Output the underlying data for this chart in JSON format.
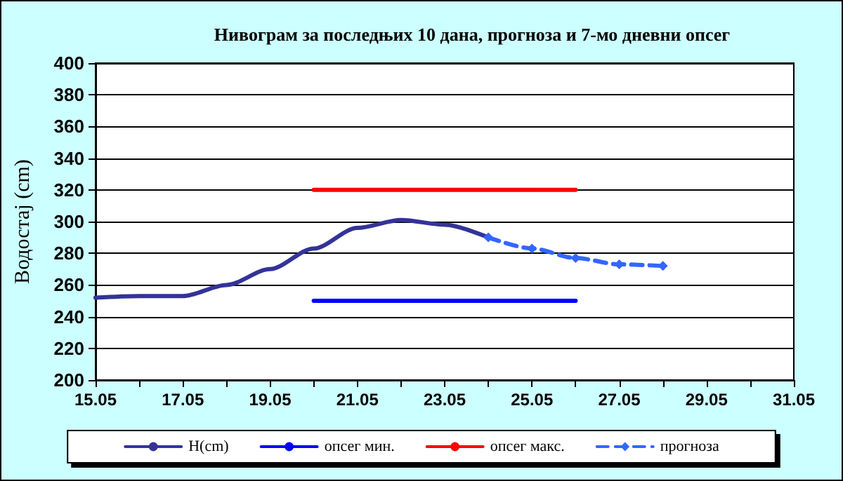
{
  "chart_data": {
    "type": "line",
    "title": "Нивограм за последњих 10 дана, прогноза и 7-мо дневни опсег",
    "ylabel": "Водостај (cm)",
    "xlim": [
      "--05-15",
      "--05-31"
    ],
    "xticks": [
      {
        "value": "--05-15",
        "label": "15.05"
      },
      {
        "value": "--05-16",
        "label": null
      },
      {
        "value": "--05-17",
        "label": "17.05"
      },
      {
        "value": "--05-18",
        "label": null
      },
      {
        "value": "--05-19",
        "label": "19.05"
      },
      {
        "value": "--05-20",
        "label": null
      },
      {
        "value": "--05-21",
        "label": "21.05"
      },
      {
        "value": "--05-22",
        "label": null
      },
      {
        "value": "--05-23",
        "label": "23.05"
      },
      {
        "value": "--05-24",
        "label": null
      },
      {
        "value": "--05-25",
        "label": "25.05"
      },
      {
        "value": "--05-26",
        "label": null
      },
      {
        "value": "--05-27",
        "label": "27.05"
      },
      {
        "value": "--05-28",
        "label": null
      },
      {
        "value": "--05-29",
        "label": "29.05"
      },
      {
        "value": "--05-30",
        "label": null
      },
      {
        "value": "--05-31",
        "label": "31.05"
      }
    ],
    "ylim": [
      200,
      400
    ],
    "yticks": [
      200,
      220,
      240,
      260,
      280,
      300,
      320,
      340,
      360,
      380,
      400
    ],
    "grid": "y",
    "legend": "bottom",
    "series": [
      {
        "name": "H(cm)",
        "color": "#333399",
        "marker": "none",
        "line_style": "solid",
        "x": [
          "--05-15",
          "--05-16",
          "--05-17",
          "--05-18",
          "--05-19",
          "--05-20",
          "--05-21",
          "--05-22",
          "--05-23",
          "--05-24"
        ],
        "values": [
          252,
          253,
          253,
          260,
          270,
          283,
          296,
          301,
          298,
          290
        ]
      },
      {
        "name": "опсег мин.",
        "color": "#0000ff",
        "marker": "none",
        "line_style": "solid",
        "x": [
          "--05-20",
          "--05-26"
        ],
        "values": [
          250,
          250
        ]
      },
      {
        "name": "опсег макс.",
        "color": "#ff0000",
        "marker": "none",
        "line_style": "solid",
        "x": [
          "--05-20",
          "--05-26"
        ],
        "values": [
          320,
          320
        ]
      },
      {
        "name": "прогноза",
        "color": "#3366ff",
        "marker": "diamond",
        "line_style": "dashed",
        "x": [
          "--05-24",
          "--05-25",
          "--05-26",
          "--05-27",
          "--05-28"
        ],
        "values": [
          290,
          283,
          277,
          273,
          272
        ]
      }
    ]
  }
}
